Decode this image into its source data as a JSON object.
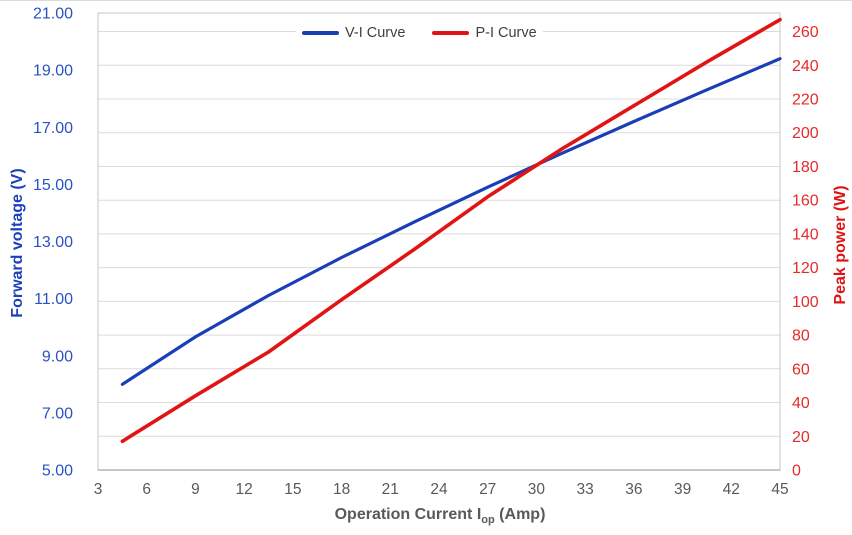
{
  "chart_data": {
    "type": "line",
    "title": "",
    "legend": {
      "position": "top-center"
    },
    "x_axis": {
      "title_main": "Operation Current I",
      "title_sub": "op",
      "title_suffix": " (Amp)",
      "range": [
        3,
        45
      ],
      "ticks": [
        3,
        6,
        9,
        12,
        15,
        18,
        21,
        24,
        27,
        30,
        33,
        36,
        39,
        42,
        45
      ],
      "tick_color": "#595959",
      "title_color": "#595959"
    },
    "y_axis_left": {
      "title": "Forward voltage (V)",
      "range": [
        5,
        21
      ],
      "tick_values": [
        5,
        7,
        9,
        11,
        13,
        15,
        17,
        19,
        21
      ],
      "tick_labels": [
        "5.00",
        "7.00",
        "9.00",
        "11.00",
        "13.00",
        "15.00",
        "17.00",
        "19.00",
        "21.00"
      ],
      "tick_color": "#2a52c4",
      "title_color": "#1c3fbb"
    },
    "y_axis_right": {
      "title": "Peak power (W)",
      "range": [
        0,
        271
      ],
      "tick_values": [
        0,
        20,
        40,
        60,
        80,
        100,
        120,
        140,
        160,
        180,
        200,
        220,
        240,
        260
      ],
      "tick_color": "#e62a2a",
      "title_color": "#df1414"
    },
    "gridlines": {
      "axis": "right",
      "values": [
        20,
        40,
        60,
        80,
        100,
        120,
        140,
        160,
        180,
        200,
        220,
        240,
        260
      ],
      "color": "#dcdcdc"
    },
    "plot_border_color": "#c4c4c4",
    "axis_line_color": "#b4b4b4",
    "series": [
      {
        "name": "V-I Curve",
        "axis": "left",
        "color": "#1a3eb5",
        "x": [
          4.5,
          9,
          13.5,
          18,
          22.5,
          27,
          31.5,
          36,
          40.5,
          45
        ],
        "y": [
          8.0,
          9.66,
          11.11,
          12.44,
          13.69,
          14.9,
          16.07,
          17.2,
          18.31,
          19.4
        ]
      },
      {
        "name": "P-I Curve",
        "axis": "right",
        "color": "#e11414",
        "x": [
          4.5,
          9,
          13.5,
          18,
          22.5,
          27,
          31.5,
          36,
          40.5,
          45
        ],
        "y": [
          17,
          44,
          70,
          101,
          131,
          162,
          190,
          216,
          242,
          267
        ]
      }
    ]
  }
}
